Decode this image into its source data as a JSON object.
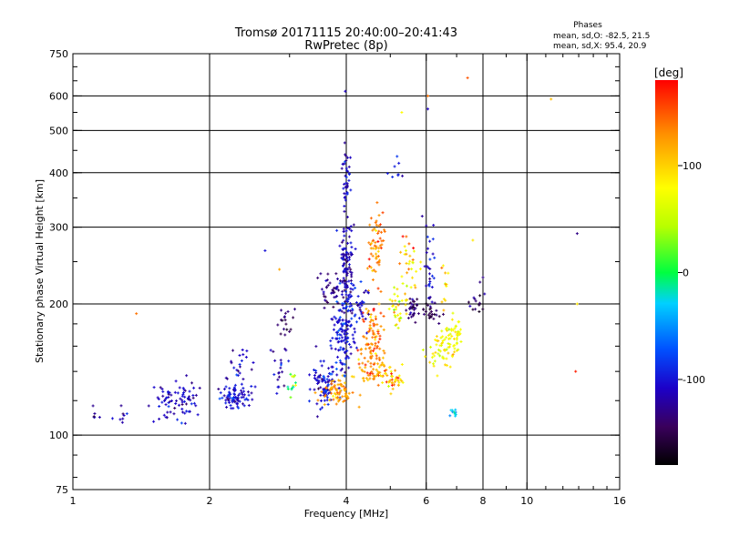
{
  "chart_data": {
    "type": "scatter",
    "title_line1": "Tromsø 20171115 20:40:00–20:41:43",
    "title_line2": "RwPretec (8p)",
    "xlabel": "Frequency [MHz]",
    "ylabel": "Stationary phase Virtual Height [km]",
    "x_scale": "log",
    "y_scale": "log",
    "xlim": [
      1,
      16
    ],
    "ylim": [
      75,
      750
    ],
    "x_ticks": [
      1,
      2,
      4,
      6,
      8,
      10,
      16
    ],
    "x_gridlines": [
      2,
      4,
      6,
      8,
      10
    ],
    "y_ticks": [
      75,
      100,
      200,
      300,
      400,
      500,
      600,
      750
    ],
    "y_gridlines": [
      100,
      200,
      300,
      400,
      500,
      600
    ],
    "grid": true,
    "colorbar": {
      "label": "[deg]",
      "ticks": [
        100,
        0,
        -100
      ],
      "range": [
        -180,
        180
      ]
    },
    "phases": {
      "header": "Phases",
      "line_O": "mean, sd,O: -82.5, 21.5",
      "line_X": "mean, sd,X: 95.4, 20.9"
    },
    "clusters": [
      {
        "f": 1.12,
        "fs": 0.02,
        "h": 110,
        "hs": 0.03,
        "n": 6,
        "p": -120,
        "ps": 15
      },
      {
        "f": 1.28,
        "fs": 0.03,
        "h": 110,
        "hs": 0.03,
        "n": 8,
        "p": -115,
        "ps": 15
      },
      {
        "f": 1.62,
        "fs": 0.06,
        "h": 120,
        "hs": 0.05,
        "n": 45,
        "p": -110,
        "ps": 15
      },
      {
        "f": 1.8,
        "fs": 0.04,
        "h": 122,
        "hs": 0.05,
        "n": 35,
        "p": -110,
        "ps": 15
      },
      {
        "f": 2.3,
        "fs": 0.09,
        "h": 122,
        "hs": 0.03,
        "n": 80,
        "p": -105,
        "ps": 15
      },
      {
        "f": 2.35,
        "fs": 0.08,
        "h": 140,
        "hs": 0.07,
        "n": 25,
        "p": -110,
        "ps": 15
      },
      {
        "f": 2.85,
        "fs": 0.06,
        "h": 142,
        "hs": 0.1,
        "n": 20,
        "p": -115,
        "ps": 18
      },
      {
        "f": 2.95,
        "fs": 0.06,
        "h": 180,
        "hs": 0.07,
        "n": 18,
        "p": -140,
        "ps": 15
      },
      {
        "f": 3.05,
        "fs": 0.06,
        "h": 130,
        "hs": 0.04,
        "n": 14,
        "p": 40,
        "ps": 40
      },
      {
        "f": 3.6,
        "fs": 0.14,
        "h": 130,
        "hs": 0.06,
        "n": 90,
        "p": -105,
        "ps": 15
      },
      {
        "f": 3.85,
        "fs": 0.2,
        "h": 125,
        "hs": 0.04,
        "n": 70,
        "p": 120,
        "ps": 20
      },
      {
        "f": 3.95,
        "fs": 0.12,
        "h": 170,
        "hs": 0.09,
        "n": 120,
        "p": -100,
        "ps": 15
      },
      {
        "f": 4.0,
        "fs": 0.08,
        "h": 240,
        "hs": 0.12,
        "n": 120,
        "p": -110,
        "ps": 15
      },
      {
        "f": 3.7,
        "fs": 0.1,
        "h": 215,
        "hs": 0.05,
        "n": 35,
        "p": -130,
        "ps": 15
      },
      {
        "f": 4.0,
        "fs": 0.04,
        "h": 380,
        "hs": 0.12,
        "n": 45,
        "p": -110,
        "ps": 15
      },
      {
        "f": 4.55,
        "fs": 0.15,
        "h": 145,
        "hs": 0.06,
        "n": 80,
        "p": 130,
        "ps": 20
      },
      {
        "f": 4.6,
        "fs": 0.12,
        "h": 180,
        "hs": 0.08,
        "n": 60,
        "p": 140,
        "ps": 25
      },
      {
        "f": 4.65,
        "fs": 0.1,
        "h": 270,
        "hs": 0.08,
        "n": 60,
        "p": 130,
        "ps": 20
      },
      {
        "f": 4.3,
        "fs": 0.1,
        "h": 200,
        "hs": 0.06,
        "n": 30,
        "p": -110,
        "ps": 15
      },
      {
        "f": 5.1,
        "fs": 0.15,
        "h": 135,
        "hs": 0.04,
        "n": 40,
        "p": 120,
        "ps": 30
      },
      {
        "f": 5.2,
        "fs": 0.15,
        "h": 200,
        "hs": 0.05,
        "n": 35,
        "p": 90,
        "ps": 30
      },
      {
        "f": 5.5,
        "fs": 0.15,
        "h": 250,
        "hs": 0.06,
        "n": 30,
        "p": 100,
        "ps": 30
      },
      {
        "f": 5.6,
        "fs": 0.1,
        "h": 195,
        "hs": 0.03,
        "n": 30,
        "p": -140,
        "ps": 15
      },
      {
        "f": 5.2,
        "fs": 0.1,
        "h": 400,
        "hs": 0.05,
        "n": 8,
        "p": -110,
        "ps": 15
      },
      {
        "f": 6.1,
        "fs": 0.1,
        "h": 240,
        "hs": 0.12,
        "n": 30,
        "p": -110,
        "ps": 15
      },
      {
        "f": 6.15,
        "fs": 0.15,
        "h": 190,
        "hs": 0.03,
        "n": 25,
        "p": -150,
        "ps": 10
      },
      {
        "f": 6.4,
        "fs": 0.2,
        "h": 155,
        "hs": 0.06,
        "n": 40,
        "p": 80,
        "ps": 20
      },
      {
        "f": 6.9,
        "fs": 0.15,
        "h": 170,
        "hs": 0.06,
        "n": 50,
        "p": 75,
        "ps": 15
      },
      {
        "f": 6.6,
        "fs": 0.1,
        "h": 220,
        "hs": 0.06,
        "n": 12,
        "p": 100,
        "ps": 30
      },
      {
        "f": 6.9,
        "fs": 0.06,
        "h": 112,
        "hs": 0.015,
        "n": 10,
        "p": -40,
        "ps": 15
      },
      {
        "f": 7.8,
        "fs": 0.15,
        "h": 200,
        "hs": 0.04,
        "n": 15,
        "p": -140,
        "ps": 15
      }
    ],
    "outliers": [
      {
        "f": 1.38,
        "h": 190,
        "p": 140
      },
      {
        "f": 2.65,
        "h": 265,
        "p": -100
      },
      {
        "f": 2.85,
        "h": 240,
        "p": 120
      },
      {
        "f": 3.98,
        "h": 615,
        "p": -110
      },
      {
        "f": 5.3,
        "h": 550,
        "p": 80
      },
      {
        "f": 6.05,
        "h": 600,
        "p": 140
      },
      {
        "f": 6.05,
        "h": 560,
        "p": -110
      },
      {
        "f": 7.4,
        "h": 660,
        "p": 150
      },
      {
        "f": 11.3,
        "h": 590,
        "p": 110
      },
      {
        "f": 12.9,
        "h": 290,
        "p": -130
      },
      {
        "f": 12.9,
        "h": 200,
        "p": 90
      },
      {
        "f": 12.8,
        "h": 140,
        "p": 170
      },
      {
        "f": 7.6,
        "h": 280,
        "p": 90
      },
      {
        "f": 8.0,
        "h": 230,
        "p": -130
      }
    ]
  }
}
